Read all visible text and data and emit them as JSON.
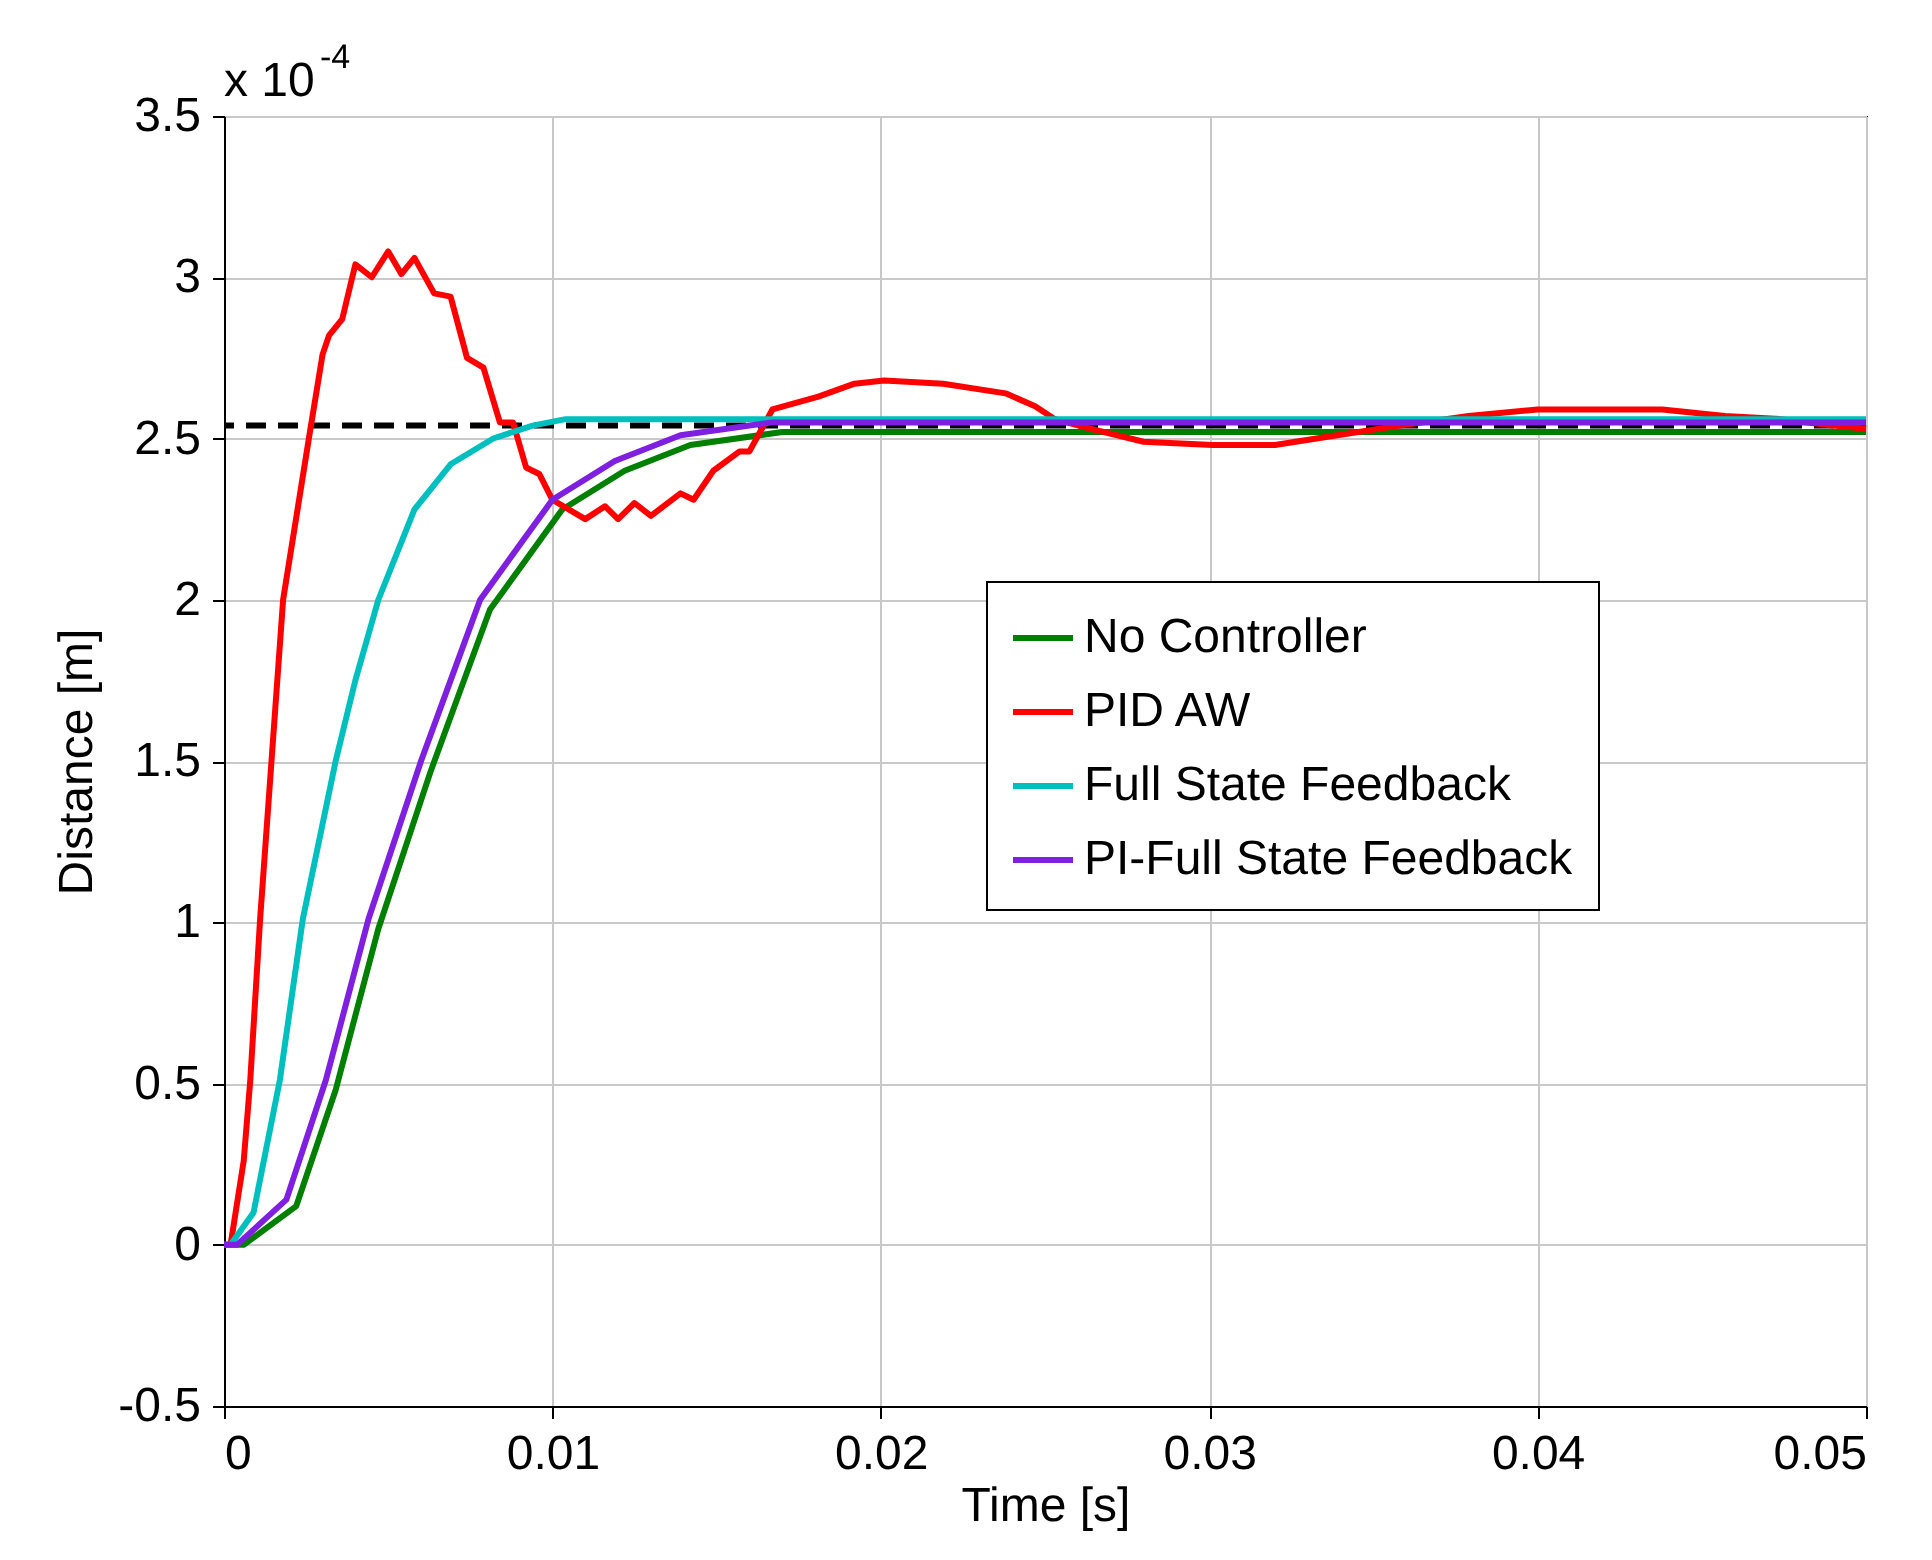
{
  "chart_data": {
    "type": "line",
    "xlabel": "Time [s]",
    "ylabel": "Distance [m]",
    "annotations": [
      "x 10$^{-4}$"
    ],
    "xlim": [
      0,
      0.05
    ],
    "xticks": [
      0,
      0.01,
      0.02,
      0.03,
      0.04,
      0.05
    ],
    "ylim": [
      -0.5,
      3.5
    ],
    "yticks": [
      -0.5,
      0,
      0.5,
      1,
      1.5,
      2,
      2.5,
      3,
      3.5
    ],
    "grid": true,
    "legend": "right",
    "line_style": "solid",
    "marker": "none",
    "ref_lines": [
      {
        "axis": "y",
        "value": 2.54,
        "label": null,
        "color": "#000000",
        "line_style": "dashed"
      }
    ],
    "series": [
      {
        "name": "No Controller",
        "color": "#008000",
        "x": [
          0,
          0.0006,
          0.0022,
          0.0034,
          0.0047,
          0.0063,
          0.0072,
          0.0081,
          0.0103,
          0.0122,
          0.0142,
          0.017,
          0.02,
          0.03,
          0.04,
          0.05
        ],
        "values": [
          0,
          0,
          0.12,
          0.48,
          0.98,
          1.47,
          1.72,
          1.97,
          2.28,
          2.4,
          2.48,
          2.52,
          2.52,
          2.52,
          2.52,
          2.52
        ]
      },
      {
        "name": "PID AW",
        "color": "#ff0000",
        "x": [
          0,
          0.0002,
          0.0006,
          0.0008,
          0.0011,
          0.0018,
          0.0026,
          0.003,
          0.0032,
          0.0036,
          0.004,
          0.0045,
          0.005,
          0.0054,
          0.0058,
          0.0064,
          0.0069,
          0.0074,
          0.0079,
          0.0084,
          0.0088,
          0.0092,
          0.0096,
          0.01,
          0.011,
          0.0116,
          0.012,
          0.0125,
          0.013,
          0.0139,
          0.0143,
          0.0149,
          0.0157,
          0.016,
          0.0167,
          0.0181,
          0.0192,
          0.0201,
          0.0219,
          0.0238,
          0.0247,
          0.0253,
          0.0264,
          0.028,
          0.0301,
          0.032,
          0.0339,
          0.0358,
          0.0379,
          0.04,
          0.0438,
          0.0457,
          0.0474,
          0.049,
          0.05
        ],
        "values": [
          0,
          0,
          0.26,
          0.51,
          1.01,
          2.0,
          2.51,
          2.76,
          2.82,
          2.87,
          3.04,
          3.0,
          3.08,
          3.01,
          3.06,
          2.95,
          2.94,
          2.75,
          2.72,
          2.55,
          2.55,
          2.41,
          2.39,
          2.31,
          2.25,
          2.29,
          2.25,
          2.3,
          2.26,
          2.33,
          2.31,
          2.4,
          2.46,
          2.46,
          2.59,
          2.63,
          2.67,
          2.68,
          2.67,
          2.64,
          2.6,
          2.56,
          2.53,
          2.49,
          2.48,
          2.48,
          2.51,
          2.54,
          2.57,
          2.59,
          2.59,
          2.57,
          2.56,
          2.54,
          2.53
        ]
      },
      {
        "name": "Full State Feedback",
        "color": "#00bfbf",
        "x": [
          0,
          0.0002,
          0.0009,
          0.0017,
          0.0024,
          0.0034,
          0.004,
          0.0047,
          0.0058,
          0.0069,
          0.0082,
          0.0094,
          0.0104,
          0.02,
          0.03,
          0.04,
          0.05
        ],
        "values": [
          0,
          0,
          0.1,
          0.51,
          1.01,
          1.5,
          1.75,
          2.0,
          2.28,
          2.42,
          2.5,
          2.54,
          2.56,
          2.56,
          2.56,
          2.56,
          2.56
        ]
      },
      {
        "name": "PI-Full State Feedback",
        "color": "#7f1fdf",
        "x": [
          0,
          0.0004,
          0.0019,
          0.0031,
          0.0044,
          0.006,
          0.0069,
          0.0078,
          0.01,
          0.0119,
          0.0139,
          0.0167,
          0.02,
          0.03,
          0.04,
          0.05
        ],
        "values": [
          0,
          0,
          0.14,
          0.51,
          1.01,
          1.5,
          1.75,
          2.0,
          2.31,
          2.43,
          2.51,
          2.55,
          2.55,
          2.55,
          2.55,
          2.55
        ]
      }
    ]
  }
}
